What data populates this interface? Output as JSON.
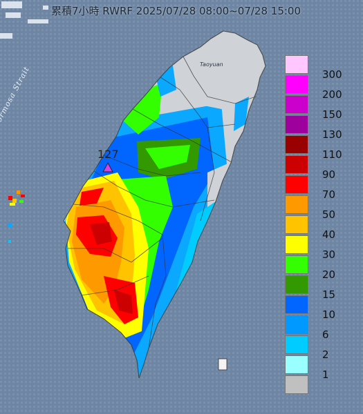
{
  "title": "累積7小時 RWRF 2025/07/28 08:00~07/28 15:00",
  "strait_label": "Formosa Strait",
  "city_label": "Taoyuan",
  "peak_label": "127",
  "legend": [
    {
      "label": "300",
      "color": "#ffc6ff"
    },
    {
      "label": "200",
      "color": "#ff00ff"
    },
    {
      "label": "150",
      "color": "#cc00cc"
    },
    {
      "label": "130",
      "color": "#9e009e"
    },
    {
      "label": "110",
      "color": "#990000"
    },
    {
      "label": "90",
      "color": "#cc0000"
    },
    {
      "label": "70",
      "color": "#ff0000"
    },
    {
      "label": "50",
      "color": "#ff9900"
    },
    {
      "label": "40",
      "color": "#ffc300"
    },
    {
      "label": "30",
      "color": "#ffff00"
    },
    {
      "label": "20",
      "color": "#33ff00"
    },
    {
      "label": "15",
      "color": "#339900"
    },
    {
      "label": "10",
      "color": "#0066ff"
    },
    {
      "label": "6",
      "color": "#0099ff"
    },
    {
      "label": "2",
      "color": "#00ccff"
    },
    {
      "label": "1",
      "color": "#99ffff"
    },
    {
      "label": "",
      "color": "#c0c0c0"
    }
  ]
}
